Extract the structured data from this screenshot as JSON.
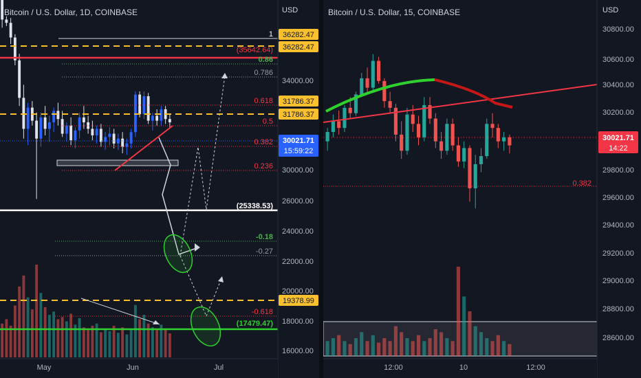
{
  "colors": {
    "background": "#131722",
    "up_candle": "#2962ff",
    "down_candle": "#e0e3eb",
    "fib_red": "#f23645",
    "fib_green": "#4caf50",
    "fib_gray": "#9598a1",
    "dashed_yellow": "#fbc02d",
    "ellipse_green": "#2fd12f"
  },
  "left_chart": {
    "title": "Bitcoin / U.S. Dollar, 1D, COINBASE",
    "currency": "USD",
    "price_ticks": [
      "34000.00",
      "32000.00",
      "30000.00",
      "28000.00",
      "26000.00",
      "24000.00",
      "22000.00",
      "20000.00",
      "18000.00",
      "16000.00"
    ],
    "date_labels": [
      "May",
      "Jun",
      "Jul"
    ],
    "fib_levels": [
      {
        "ratio": "1",
        "color": "#ffffff"
      },
      {
        "ratio": "0.86",
        "color": "#4caf50"
      },
      {
        "ratio": "0.786",
        "color": "#9598a1"
      },
      {
        "ratio": "0.618",
        "color": "#f23645"
      },
      {
        "ratio": "0.5",
        "color": "#f23645"
      },
      {
        "ratio": "0.382",
        "color": "#f23645"
      },
      {
        "ratio": "0.236",
        "color": "#f23645"
      },
      {
        "ratio": "-0.18",
        "color": "#4caf50"
      },
      {
        "ratio": "-0.27",
        "color": "#9598a1"
      },
      {
        "ratio": "-0.618",
        "color": "#f23645"
      }
    ],
    "price_tags": {
      "top_a": "36282.47",
      "top_b": "36282.47",
      "red_line": "(35642.64)",
      "mid_a": "31786.37",
      "mid_b": "31786.37",
      "current": "30021.71",
      "countdown": "15:59:22",
      "white_line": "(25338.53)",
      "low_dashed": "19378.99",
      "green_line": "(17479.47)"
    }
  },
  "right_chart": {
    "title": "Bitcoin / U.S. Dollar, 15, COINBASE",
    "currency": "USD",
    "price_ticks": [
      "30800.00",
      "30600.00",
      "30400.00",
      "30200.00",
      "30000.00",
      "29800.00",
      "29600.00",
      "29400.00",
      "29200.00",
      "29000.00",
      "28800.00",
      "28600.00"
    ],
    "date_labels": [
      "12:00",
      "10",
      "12:00"
    ],
    "fib_label": "0.382",
    "price_tags": {
      "current": "30021.71",
      "countdown": "14:22"
    }
  },
  "chart_data": [
    {
      "type": "candlestick",
      "title": "Bitcoin / U.S. Dollar, 1D, COINBASE",
      "x_labels": [
        "May",
        "Jun",
        "Jul"
      ],
      "ylim": [
        15500,
        37500
      ],
      "ohlc": [
        [
          37500,
          37600,
          35800,
          36300
        ],
        [
          36300,
          36500,
          35900,
          36100
        ],
        [
          36100,
          36400,
          34800,
          35200
        ],
        [
          35200,
          35400,
          33500,
          33800
        ],
        [
          33800,
          34200,
          31000,
          31500
        ],
        [
          31500,
          32300,
          29000,
          29600
        ],
        [
          29600,
          31200,
          28600,
          30900
        ],
        [
          30900,
          31300,
          29800,
          30100
        ],
        [
          30100,
          30600,
          25300,
          29000
        ],
        [
          29000,
          30600,
          28500,
          30300
        ],
        [
          30300,
          31000,
          29200,
          29600
        ],
        [
          29600,
          30400,
          28800,
          30000
        ],
        [
          30000,
          30900,
          29400,
          30700
        ],
        [
          30700,
          31200,
          29800,
          30200
        ],
        [
          30200,
          30700,
          29100,
          29300
        ],
        [
          29300,
          30000,
          28800,
          29800
        ],
        [
          29800,
          30300,
          28600,
          28900
        ],
        [
          28900,
          29700,
          28400,
          29500
        ],
        [
          29500,
          30600,
          29000,
          30300
        ],
        [
          30300,
          31000,
          29600,
          30000
        ],
        [
          30000,
          30400,
          29300,
          29600
        ],
        [
          29600,
          30100,
          28900,
          29200
        ],
        [
          29200,
          29800,
          28700,
          29600
        ],
        [
          29600,
          29900,
          28500,
          28800
        ],
        [
          28800,
          29400,
          28300,
          29100
        ],
        [
          29100,
          29700,
          28600,
          29300
        ],
        [
          29300,
          29600,
          28400,
          28700
        ],
        [
          28700,
          29300,
          28300,
          29000
        ],
        [
          29000,
          29400,
          28100,
          28500
        ],
        [
          28500,
          29000,
          28000,
          28700
        ],
        [
          28700,
          29600,
          28400,
          29400
        ],
        [
          29400,
          31900,
          29100,
          31700
        ],
        [
          31700,
          31900,
          30300,
          30500
        ],
        [
          30500,
          31900,
          30200,
          31600
        ],
        [
          31600,
          31800,
          29900,
          30100
        ],
        [
          30100,
          30600,
          29500,
          30400
        ],
        [
          30400,
          30800,
          29800,
          30100
        ],
        [
          30100,
          31000,
          29800,
          30800
        ],
        [
          30800,
          31000,
          29900,
          30200
        ],
        [
          30200,
          30500,
          29700,
          30000
        ]
      ],
      "volume": [
        62,
        70,
        58,
        95,
        130,
        150,
        110,
        88,
        170,
        118,
        92,
        78,
        84,
        70,
        74,
        66,
        80,
        60,
        72,
        55,
        50,
        58,
        62,
        46,
        52,
        48,
        58,
        45,
        55,
        42,
        50,
        96,
        70,
        78,
        62,
        55,
        50,
        60,
        52,
        44
      ]
    },
    {
      "type": "candlestick",
      "title": "Bitcoin / U.S. Dollar, 15, COINBASE",
      "x_labels": [
        "12:00",
        "10",
        "12:00"
      ],
      "ylim": [
        28450,
        30950
      ],
      "ohlc": [
        [
          30050,
          30150,
          29980,
          30120
        ],
        [
          30120,
          30250,
          30080,
          30200
        ],
        [
          30200,
          30280,
          30100,
          30150
        ],
        [
          30150,
          30320,
          30120,
          30300
        ],
        [
          30300,
          30380,
          30220,
          30260
        ],
        [
          30260,
          30420,
          30240,
          30400
        ],
        [
          30400,
          30560,
          30380,
          30520
        ],
        [
          30520,
          30600,
          30400,
          30450
        ],
        [
          30450,
          30700,
          30420,
          30650
        ],
        [
          30650,
          30680,
          30480,
          30500
        ],
        [
          30500,
          30520,
          30300,
          30350
        ],
        [
          30350,
          30420,
          30260,
          30300
        ],
        [
          30300,
          30330,
          30050,
          30100
        ],
        [
          30100,
          30200,
          29920,
          29980
        ],
        [
          29980,
          30300,
          29950,
          30250
        ],
        [
          30250,
          30320,
          30120,
          30180
        ],
        [
          30180,
          30240,
          30020,
          30080
        ],
        [
          30080,
          30380,
          30050,
          30320
        ],
        [
          30320,
          30380,
          30180,
          30220
        ],
        [
          30220,
          30260,
          30000,
          30050
        ],
        [
          30050,
          30120,
          29920,
          29980
        ],
        [
          29980,
          30220,
          29950,
          30180
        ],
        [
          30180,
          30220,
          29980,
          30020
        ],
        [
          30020,
          30080,
          29860,
          29900
        ],
        [
          29900,
          30050,
          29850,
          30000
        ],
        [
          30000,
          30020,
          29600,
          29700
        ],
        [
          29700,
          29950,
          29550,
          29880
        ],
        [
          29880,
          30000,
          29820,
          29940
        ],
        [
          29940,
          30220,
          29920,
          30180
        ],
        [
          30180,
          30260,
          30080,
          30150
        ],
        [
          30150,
          30180,
          30000,
          30050
        ],
        [
          30050,
          30120,
          29980,
          30080
        ],
        [
          30080,
          30100,
          29960,
          30020
        ]
      ],
      "volume": [
        10,
        12,
        14,
        10,
        8,
        12,
        16,
        10,
        14,
        9,
        12,
        10,
        20,
        16,
        12,
        10,
        14,
        10,
        12,
        18,
        16,
        12,
        10,
        60,
        40,
        30,
        20,
        16,
        12,
        10,
        14,
        10,
        8
      ]
    }
  ]
}
